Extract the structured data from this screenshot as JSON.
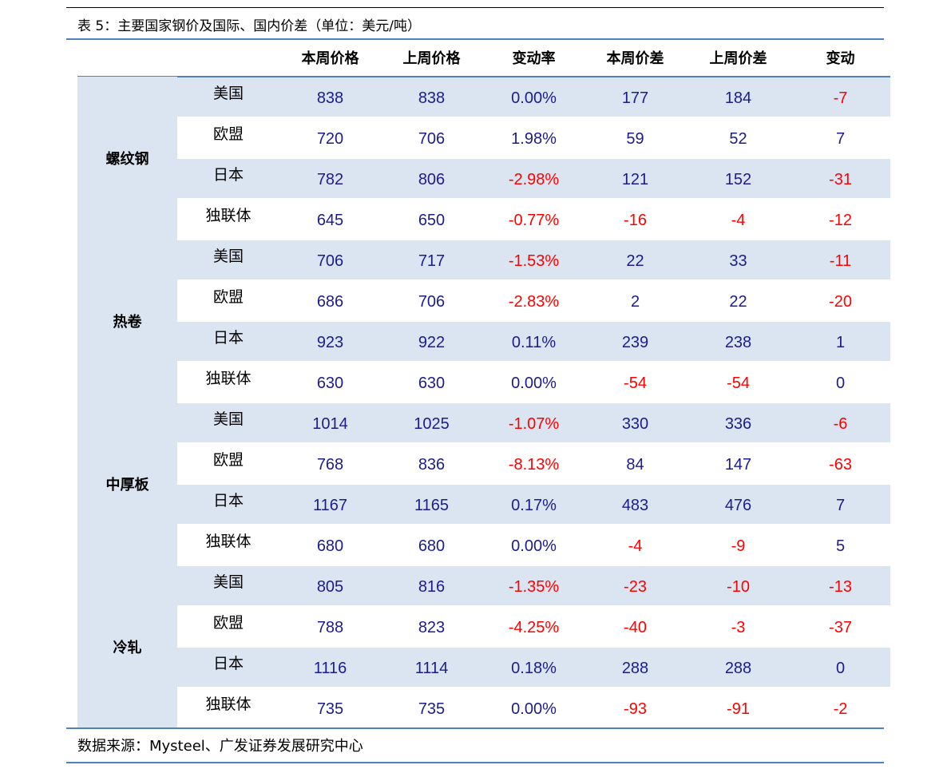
{
  "header": {
    "title": "表 5：主要国家钢价及国际、国内价差（单位：美元/吨）"
  },
  "table": {
    "columns": [
      "本周价格",
      "上周价格",
      "变动率",
      "本周价差",
      "上周价差",
      "变动"
    ],
    "groups": [
      {
        "name": "螺纹钢",
        "rows": [
          {
            "country": "美国",
            "values": [
              838,
              838,
              "0.00%",
              177,
              184,
              -7
            ]
          },
          {
            "country": "欧盟",
            "values": [
              720,
              706,
              "1.98%",
              59,
              52,
              7
            ]
          },
          {
            "country": "日本",
            "values": [
              782,
              806,
              "-2.98%",
              121,
              152,
              -31
            ]
          },
          {
            "country": "独联体",
            "values": [
              645,
              650,
              "-0.77%",
              -16,
              -4,
              -12
            ]
          }
        ]
      },
      {
        "name": "热卷",
        "rows": [
          {
            "country": "美国",
            "values": [
              706,
              717,
              "-1.53%",
              22,
              33,
              -11
            ]
          },
          {
            "country": "欧盟",
            "values": [
              686,
              706,
              "-2.83%",
              2,
              22,
              -20
            ]
          },
          {
            "country": "日本",
            "values": [
              923,
              922,
              "0.11%",
              239,
              238,
              1
            ]
          },
          {
            "country": "独联体",
            "values": [
              630,
              630,
              "0.00%",
              -54,
              -54,
              0
            ]
          }
        ]
      },
      {
        "name": "中厚板",
        "rows": [
          {
            "country": "美国",
            "values": [
              1014,
              1025,
              "-1.07%",
              330,
              336,
              -6
            ]
          },
          {
            "country": "欧盟",
            "values": [
              768,
              836,
              "-8.13%",
              84,
              147,
              -63
            ]
          },
          {
            "country": "日本",
            "values": [
              1167,
              1165,
              "0.17%",
              483,
              476,
              7
            ]
          },
          {
            "country": "独联体",
            "values": [
              680,
              680,
              "0.00%",
              -4,
              -9,
              5
            ]
          }
        ]
      },
      {
        "name": "冷轧",
        "rows": [
          {
            "country": "美国",
            "values": [
              805,
              816,
              "-1.35%",
              -23,
              -10,
              -13
            ]
          },
          {
            "country": "欧盟",
            "values": [
              788,
              823,
              "-4.25%",
              -40,
              -3,
              -37
            ]
          },
          {
            "country": "日本",
            "values": [
              1116,
              1114,
              "0.18%",
              288,
              288,
              0
            ]
          },
          {
            "country": "独联体",
            "values": [
              735,
              735,
              "0.00%",
              -93,
              -91,
              -2
            ]
          }
        ]
      }
    ]
  },
  "footer": {
    "source": "数据来源：Mysteel、广发证券发展研究中心"
  }
}
